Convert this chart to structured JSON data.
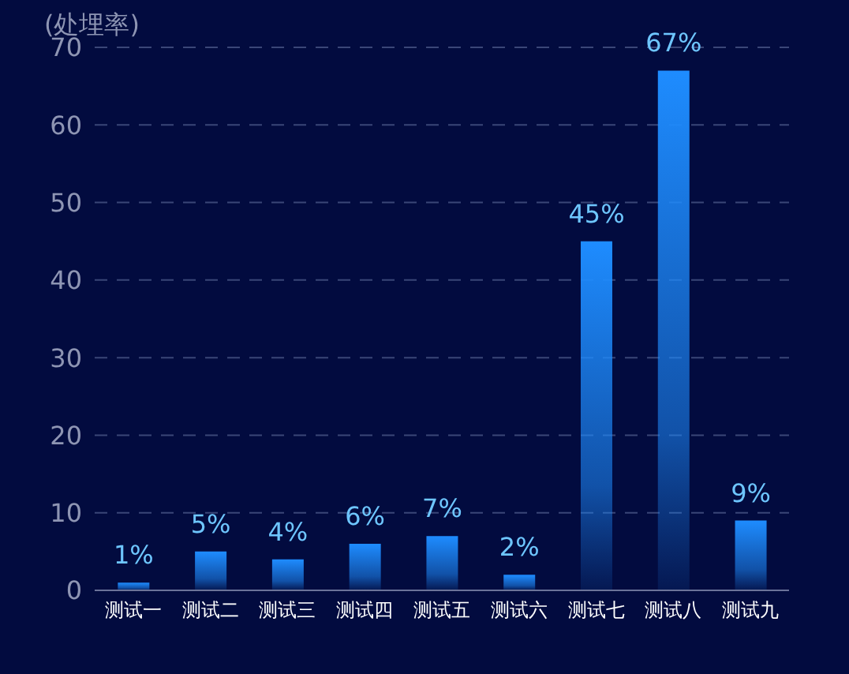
{
  "chart_data": {
    "type": "bar",
    "ylabel": "(处埋率)",
    "categories": [
      "测试一",
      "测试二",
      "测试三",
      "测试四",
      "测试五",
      "测试六",
      "测试七",
      "测试八",
      "测试九"
    ],
    "values": [
      1,
      5,
      4,
      6,
      7,
      2,
      45,
      67,
      9
    ],
    "value_labels": [
      "1%",
      "5%",
      "4%",
      "6%",
      "7%",
      "2%",
      "45%",
      "67%",
      "9%"
    ],
    "color": "#1e8cff",
    "ylim": [
      0,
      70
    ],
    "yticks": [
      0,
      10,
      20,
      30,
      40,
      50,
      60,
      70
    ],
    "grid": "y"
  }
}
